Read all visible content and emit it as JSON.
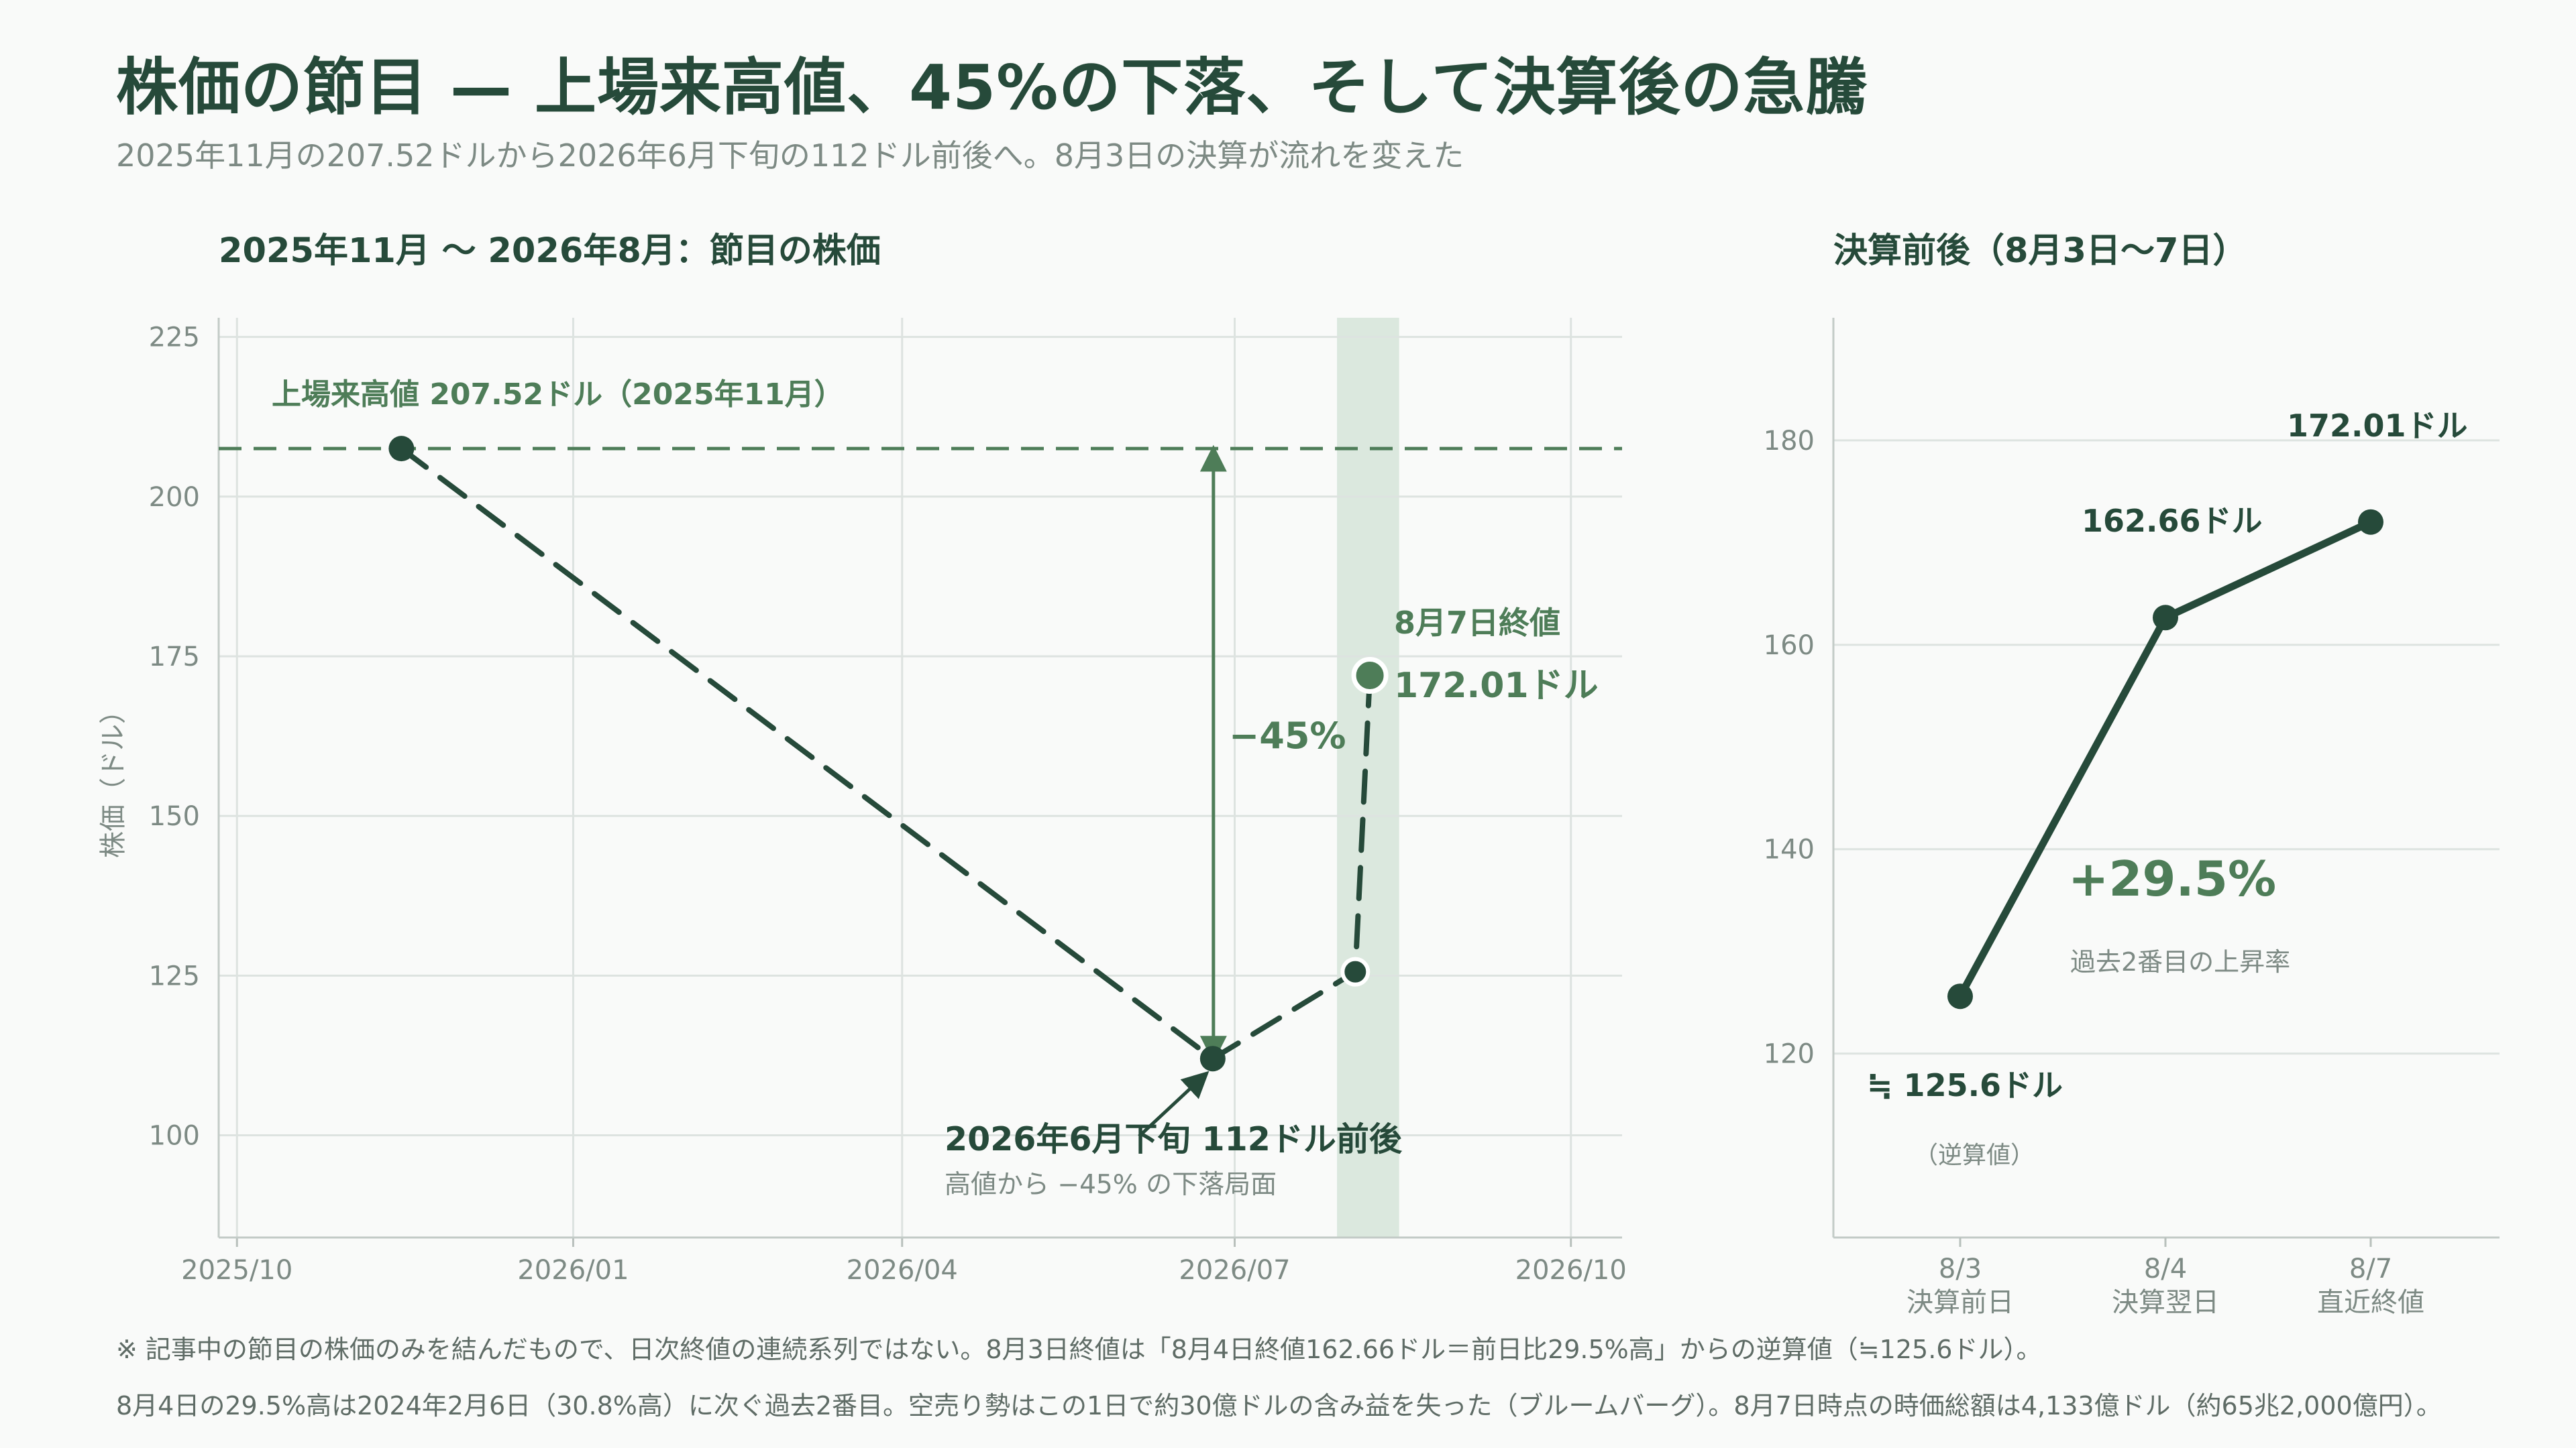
{
  "title": "株価の節目 — 上場来高値、45%の下落、そして決算後の急騰",
  "subtitle": "2025年11月の207.52ドルから2026年6月下旬の112ドル前後へ。8月3日の決算が流れを変えた",
  "colors": {
    "dark_green": "#264a3a",
    "accent_green": "#4e7d58",
    "highlight_band": "#d7e6da",
    "grid": "#dde3e0",
    "muted_text": "#7d8a84"
  },
  "chart_data": [
    {
      "type": "line",
      "title": "2025年11月 〜 2026年8月：節目の株価",
      "xlabel": "",
      "ylabel": "株価（ドル）",
      "x_ticks": [
        "2025/10",
        "2026/01",
        "2026/04",
        "2026/07",
        "2026/10"
      ],
      "y_ticks": [
        100,
        125,
        150,
        175,
        200,
        225
      ],
      "ylim": [
        84,
        228
      ],
      "xlim": [
        "2025-09-26",
        "2026-10-15"
      ],
      "grid": true,
      "series": [
        {
          "points": [
            {
              "x": "2025-11-15",
              "y": 207.52
            },
            {
              "x": "2026-06-25",
              "y": 112
            },
            {
              "x": "2026-08-03",
              "y": 125.6
            },
            {
              "x": "2026-08-07",
              "y": 172.01
            }
          ]
        }
      ],
      "reference_line": {
        "y": 207.52,
        "label": "上場来高値 207.52ドル（2025年11月）"
      },
      "highlight_band": {
        "x_start": "2026-07-29",
        "x_end": "2026-08-15"
      },
      "drop_label": "−45%",
      "annotations": {
        "low_title": "2026年6月下旬 112ドル前後",
        "low_sub": "高値から −45% の下落局面",
        "end_title": "8月7日終値",
        "end_value": "172.01ドル"
      }
    },
    {
      "type": "line",
      "title": "決算前後（8月3日〜7日）",
      "categories": [
        "8/3",
        "8/4",
        "8/7"
      ],
      "category_sublabels": [
        "決算前日",
        "決算翌日",
        "直近終値"
      ],
      "y_ticks": [
        120,
        140,
        160,
        180
      ],
      "ylim": [
        102,
        192
      ],
      "grid": true,
      "series": [
        {
          "values": [
            125.6,
            162.66,
            172.01
          ]
        }
      ],
      "point_labels": [
        "≒ 125.6ドル",
        "162.66ドル",
        "172.01ドル"
      ],
      "first_point_note": "（逆算値）",
      "growth_label": "+29.5%",
      "growth_note": "過去2番目の上昇率"
    }
  ],
  "footnotes": [
    "※ 記事中の節目の株価のみを結んだもので、日次終値の連続系列ではない。8月3日終値は「8月4日終値162.66ドル＝前日比29.5%高」からの逆算値（≒125.6ドル）。",
    "8月4日の29.5%高は2024年2月6日（30.8%高）に次ぐ過去2番目。空売り勢はこの1日で約30億ドルの含み益を失った（ブルームバーグ）。8月7日時点の時価総額は4,133億ドル（約65兆2,000億円）。"
  ]
}
